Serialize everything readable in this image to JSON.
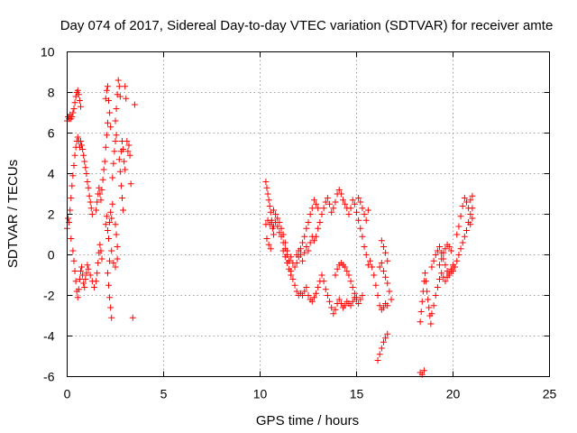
{
  "chart_data": {
    "type": "scatter",
    "title": "Day 074 of 2017, Sidereal Day-to-day VTEC variation (SDTVAR) for receiver amte",
    "xlabel": "GPS time / hours",
    "ylabel": "SDTVAR / TECUs",
    "xlim": [
      0,
      25
    ],
    "ylim": [
      -6,
      10
    ],
    "xticks": [
      "0",
      "5",
      "10",
      "15",
      "20",
      "25"
    ],
    "yticks": [
      "-6",
      "-4",
      "-2",
      "0",
      "2",
      "4",
      "6",
      "8",
      "10"
    ],
    "grid": true,
    "marker": "plus",
    "color": "#ff0000",
    "points": [
      [
        0.0,
        6.6
      ],
      [
        0.05,
        6.8
      ],
      [
        0.1,
        6.7
      ],
      [
        0.15,
        6.9
      ],
      [
        0.2,
        6.7
      ],
      [
        0.25,
        6.8
      ],
      [
        0.3,
        7.0
      ],
      [
        0.35,
        7.2
      ],
      [
        0.4,
        7.5
      ],
      [
        0.45,
        7.8
      ],
      [
        0.5,
        8.0
      ],
      [
        0.55,
        8.1
      ],
      [
        0.6,
        7.9
      ],
      [
        0.65,
        7.6
      ],
      [
        0.7,
        7.3
      ],
      [
        0.0,
        1.3
      ],
      [
        0.05,
        1.8
      ],
      [
        0.1,
        1.6
      ],
      [
        0.15,
        2.2
      ],
      [
        0.2,
        2.8
      ],
      [
        0.25,
        3.4
      ],
      [
        0.3,
        3.9
      ],
      [
        0.35,
        4.4
      ],
      [
        0.4,
        4.9
      ],
      [
        0.45,
        5.3
      ],
      [
        0.5,
        5.6
      ],
      [
        0.55,
        5.8
      ],
      [
        0.6,
        5.6
      ],
      [
        0.65,
        5.3
      ],
      [
        0.7,
        5.6
      ],
      [
        0.75,
        5.4
      ],
      [
        0.8,
        5.2
      ],
      [
        0.85,
        4.9
      ],
      [
        0.9,
        4.6
      ],
      [
        0.95,
        4.3
      ],
      [
        1.0,
        4.0
      ],
      [
        1.05,
        3.6
      ],
      [
        1.1,
        3.3
      ],
      [
        1.15,
        2.9
      ],
      [
        1.2,
        2.6
      ],
      [
        1.25,
        2.3
      ],
      [
        1.3,
        2.0
      ],
      [
        0.2,
        0.8
      ],
      [
        0.3,
        0.2
      ],
      [
        0.35,
        -0.3
      ],
      [
        0.4,
        -0.8
      ],
      [
        0.45,
        -1.3
      ],
      [
        0.5,
        -1.8
      ],
      [
        0.55,
        -2.1
      ],
      [
        0.6,
        -1.7
      ],
      [
        0.65,
        -1.2
      ],
      [
        0.7,
        -0.8
      ],
      [
        0.75,
        -0.6
      ],
      [
        0.8,
        -1.0
      ],
      [
        0.85,
        -1.4
      ],
      [
        0.9,
        -1.6
      ],
      [
        0.95,
        -1.2
      ],
      [
        1.0,
        -0.9
      ],
      [
        1.05,
        -0.5
      ],
      [
        1.1,
        -0.7
      ],
      [
        1.2,
        -1.0
      ],
      [
        1.3,
        -1.3
      ],
      [
        1.4,
        -1.6
      ],
      [
        1.5,
        -1.3
      ],
      [
        1.55,
        -0.9
      ],
      [
        1.6,
        -0.4
      ],
      [
        1.65,
        0.1
      ],
      [
        1.7,
        0.5
      ],
      [
        1.75,
        0.2
      ],
      [
        1.8,
        -0.2
      ],
      [
        1.5,
        2.2
      ],
      [
        1.55,
        2.6
      ],
      [
        1.6,
        3.0
      ],
      [
        1.65,
        3.3
      ],
      [
        1.7,
        3.0
      ],
      [
        1.75,
        2.7
      ],
      [
        1.8,
        3.2
      ],
      [
        1.85,
        3.7
      ],
      [
        1.9,
        4.2
      ],
      [
        1.95,
        4.6
      ],
      [
        2.0,
        5.3
      ],
      [
        2.05,
        5.9
      ],
      [
        2.1,
        6.5
      ],
      [
        2.0,
        7.7
      ],
      [
        2.05,
        8.1
      ],
      [
        2.1,
        8.3
      ],
      [
        2.15,
        7.6
      ],
      [
        2.2,
        7.0
      ],
      [
        2.25,
        6.3
      ],
      [
        2.0,
        1.5
      ],
      [
        2.05,
        1.9
      ],
      [
        2.1,
        1.2
      ],
      [
        2.15,
        0.8
      ],
      [
        2.2,
        1.6
      ],
      [
        2.25,
        2.1
      ],
      [
        2.3,
        1.8
      ],
      [
        2.35,
        2.5
      ],
      [
        2.1,
        -0.9
      ],
      [
        2.15,
        -1.5
      ],
      [
        2.2,
        -2.1
      ],
      [
        2.25,
        -2.6
      ],
      [
        2.3,
        -3.1
      ],
      [
        2.2,
        -0.3
      ],
      [
        2.3,
        0.2
      ],
      [
        2.4,
        -0.4
      ],
      [
        2.35,
        3.8
      ],
      [
        2.4,
        4.5
      ],
      [
        2.45,
        5.1
      ],
      [
        2.5,
        5.6
      ],
      [
        2.55,
        5.9
      ],
      [
        2.5,
        6.6
      ],
      [
        2.55,
        7.2
      ],
      [
        2.6,
        7.9
      ],
      [
        2.65,
        8.6
      ],
      [
        2.7,
        8.3
      ],
      [
        2.75,
        7.8
      ],
      [
        2.7,
        4.7
      ],
      [
        2.75,
        4.1
      ],
      [
        2.8,
        3.4
      ],
      [
        2.85,
        2.8
      ],
      [
        2.9,
        2.2
      ],
      [
        2.8,
        5.1
      ],
      [
        2.85,
        5.6
      ],
      [
        2.9,
        5.2
      ],
      [
        2.95,
        4.6
      ],
      [
        3.0,
        4.2
      ],
      [
        3.0,
        8.3
      ],
      [
        3.05,
        7.7
      ],
      [
        2.5,
        1.5
      ],
      [
        2.55,
        1.0
      ],
      [
        2.6,
        0.4
      ],
      [
        2.5,
        -0.6
      ],
      [
        2.6,
        -0.2
      ],
      [
        3.1,
        5.6
      ],
      [
        3.15,
        5.1
      ],
      [
        3.2,
        5.4
      ],
      [
        3.25,
        4.9
      ],
      [
        3.3,
        3.5
      ],
      [
        3.4,
        -3.1
      ],
      [
        3.5,
        7.4
      ],
      [
        10.3,
        3.6
      ],
      [
        10.35,
        3.3
      ],
      [
        10.4,
        3.0
      ],
      [
        10.45,
        2.7
      ],
      [
        10.5,
        2.4
      ],
      [
        10.55,
        2.1
      ],
      [
        10.6,
        1.7
      ],
      [
        10.65,
        1.3
      ],
      [
        10.7,
        1.0
      ],
      [
        10.3,
        1.5
      ],
      [
        10.4,
        1.7
      ],
      [
        10.5,
        1.5
      ],
      [
        10.6,
        1.6
      ],
      [
        10.7,
        1.4
      ],
      [
        10.8,
        1.6
      ],
      [
        10.9,
        1.4
      ],
      [
        10.35,
        0.8
      ],
      [
        10.45,
        0.5
      ],
      [
        10.55,
        0.3
      ],
      [
        10.7,
        2.2
      ],
      [
        10.8,
        2.0
      ],
      [
        10.9,
        1.8
      ],
      [
        11.0,
        1.6
      ],
      [
        11.1,
        1.3
      ],
      [
        11.2,
        1.0
      ],
      [
        11.3,
        0.6
      ],
      [
        11.4,
        0.2
      ],
      [
        11.5,
        -0.3
      ],
      [
        11.6,
        -0.8
      ],
      [
        11.7,
        -1.2
      ],
      [
        11.8,
        -1.5
      ],
      [
        11.9,
        -1.8
      ],
      [
        12.0,
        -2.0
      ],
      [
        11.0,
        1.1
      ],
      [
        11.1,
        0.9
      ],
      [
        11.2,
        0.6
      ],
      [
        11.3,
        0.3
      ],
      [
        11.4,
        0.0
      ],
      [
        11.5,
        -0.3
      ],
      [
        11.6,
        -0.1
      ],
      [
        11.7,
        -0.4
      ],
      [
        11.8,
        -0.6
      ],
      [
        11.9,
        -0.4
      ],
      [
        12.0,
        -0.1
      ],
      [
        12.1,
        0.3
      ],
      [
        12.2,
        0.6
      ],
      [
        12.3,
        0.9
      ],
      [
        12.4,
        1.3
      ],
      [
        12.5,
        1.6
      ],
      [
        12.6,
        2.0
      ],
      [
        12.7,
        2.3
      ],
      [
        12.8,
        2.7
      ],
      [
        12.9,
        2.5
      ],
      [
        13.0,
        2.3
      ],
      [
        11.2,
        0.2
      ],
      [
        11.3,
        -0.1
      ],
      [
        11.4,
        -0.4
      ],
      [
        11.5,
        -0.7
      ],
      [
        11.6,
        -1.0
      ],
      [
        11.9,
        0.0
      ],
      [
        12.0,
        0.2
      ],
      [
        12.1,
        0.0
      ],
      [
        12.2,
        -0.3
      ],
      [
        12.3,
        0.1
      ],
      [
        12.4,
        0.4
      ],
      [
        12.5,
        0.2
      ],
      [
        12.6,
        0.6
      ],
      [
        12.7,
        0.9
      ],
      [
        12.8,
        0.7
      ],
      [
        12.9,
        0.9
      ],
      [
        13.0,
        1.3
      ],
      [
        13.1,
        1.6
      ],
      [
        13.2,
        2.0
      ],
      [
        13.3,
        2.3
      ],
      [
        13.4,
        2.6
      ],
      [
        13.5,
        2.8
      ],
      [
        13.6,
        2.5
      ],
      [
        13.7,
        2.1
      ],
      [
        13.8,
        2.3
      ],
      [
        13.9,
        2.6
      ],
      [
        14.0,
        3.0
      ],
      [
        14.1,
        3.2
      ],
      [
        14.2,
        3.0
      ],
      [
        14.3,
        2.7
      ],
      [
        14.4,
        2.5
      ],
      [
        14.5,
        2.3
      ],
      [
        14.6,
        2.0
      ],
      [
        14.7,
        2.3
      ],
      [
        14.8,
        2.7
      ],
      [
        14.9,
        2.5
      ],
      [
        15.0,
        2.1
      ],
      [
        15.1,
        2.8
      ],
      [
        15.2,
        2.6
      ],
      [
        15.3,
        2.3
      ],
      [
        15.4,
        2.0
      ],
      [
        15.5,
        1.7
      ],
      [
        15.6,
        2.2
      ],
      [
        12.1,
        -1.9
      ],
      [
        12.2,
        -2.0
      ],
      [
        12.3,
        -1.8
      ],
      [
        12.4,
        -1.6
      ],
      [
        12.5,
        -2.0
      ],
      [
        12.6,
        -2.2
      ],
      [
        12.7,
        -2.3
      ],
      [
        12.8,
        -2.1
      ],
      [
        12.9,
        -1.9
      ],
      [
        13.0,
        -1.6
      ],
      [
        13.1,
        -1.3
      ],
      [
        13.2,
        -1.0
      ],
      [
        13.3,
        -1.3
      ],
      [
        13.4,
        -1.7
      ],
      [
        13.5,
        -2.0
      ],
      [
        13.6,
        -2.3
      ],
      [
        13.7,
        -2.6
      ],
      [
        13.8,
        -2.9
      ],
      [
        13.9,
        -2.7
      ],
      [
        14.0,
        -2.4
      ],
      [
        14.1,
        -2.2
      ],
      [
        14.2,
        -2.4
      ],
      [
        14.3,
        -2.6
      ],
      [
        14.4,
        -2.5
      ],
      [
        14.5,
        -2.3
      ],
      [
        14.6,
        -2.4
      ],
      [
        14.7,
        -2.5
      ],
      [
        14.8,
        -2.3
      ],
      [
        14.9,
        -2.1
      ],
      [
        15.0,
        -2.2
      ],
      [
        15.1,
        -2.4
      ],
      [
        15.2,
        -2.2
      ],
      [
        15.3,
        -2.0
      ],
      [
        13.9,
        -1.0
      ],
      [
        14.0,
        -0.7
      ],
      [
        14.1,
        -0.5
      ],
      [
        14.2,
        -0.4
      ],
      [
        14.3,
        -0.5
      ],
      [
        14.4,
        -0.6
      ],
      [
        14.5,
        -0.8
      ],
      [
        14.6,
        -1.0
      ],
      [
        14.7,
        -1.3
      ],
      [
        14.8,
        -1.6
      ],
      [
        14.9,
        -1.9
      ],
      [
        15.0,
        -2.1
      ],
      [
        15.1,
        1.7
      ],
      [
        15.2,
        1.3
      ],
      [
        15.3,
        0.9
      ],
      [
        15.4,
        0.4
      ],
      [
        15.5,
        0.0
      ],
      [
        15.6,
        -0.5
      ],
      [
        15.7,
        -0.3
      ],
      [
        15.8,
        -0.6
      ],
      [
        15.9,
        -1.0
      ],
      [
        16.0,
        -1.5
      ],
      [
        16.1,
        -2.0
      ],
      [
        16.2,
        -2.5
      ],
      [
        16.3,
        -2.7
      ],
      [
        16.4,
        -2.6
      ],
      [
        16.5,
        -2.4
      ],
      [
        16.6,
        -2.5
      ],
      [
        16.2,
        -0.6
      ],
      [
        16.3,
        -0.4
      ],
      [
        16.4,
        -0.8
      ],
      [
        16.5,
        -1.1
      ],
      [
        16.6,
        -1.4
      ],
      [
        16.7,
        -1.8
      ],
      [
        16.8,
        -2.2
      ],
      [
        16.3,
        0.7
      ],
      [
        16.4,
        0.4
      ],
      [
        16.5,
        0.1
      ],
      [
        16.6,
        -0.3
      ],
      [
        16.1,
        -5.2
      ],
      [
        16.2,
        -4.9
      ],
      [
        16.3,
        -4.6
      ],
      [
        16.4,
        -4.3
      ],
      [
        16.5,
        -4.1
      ],
      [
        16.6,
        -3.9
      ],
      [
        18.3,
        -5.8
      ],
      [
        18.4,
        -5.9
      ],
      [
        18.5,
        -5.7
      ],
      [
        18.3,
        -3.3
      ],
      [
        18.35,
        -2.8
      ],
      [
        18.4,
        -2.3
      ],
      [
        18.45,
        -1.8
      ],
      [
        18.5,
        -1.3
      ],
      [
        18.55,
        -0.9
      ],
      [
        18.6,
        -1.3
      ],
      [
        18.65,
        -1.8
      ],
      [
        18.7,
        -2.2
      ],
      [
        18.75,
        -2.6
      ],
      [
        18.8,
        -3.0
      ],
      [
        18.85,
        -3.4
      ],
      [
        18.9,
        -2.9
      ],
      [
        19.0,
        -2.5
      ],
      [
        19.1,
        -2.0
      ],
      [
        19.2,
        -1.6
      ],
      [
        19.3,
        -1.2
      ],
      [
        19.4,
        -0.9
      ],
      [
        19.5,
        -1.1
      ],
      [
        19.6,
        -1.3
      ],
      [
        19.7,
        -1.1
      ],
      [
        19.8,
        -0.9
      ],
      [
        19.9,
        -0.7
      ],
      [
        20.0,
        -0.8
      ],
      [
        20.1,
        -0.6
      ],
      [
        20.2,
        -0.3
      ],
      [
        20.3,
        0.0
      ],
      [
        20.4,
        0.3
      ],
      [
        20.5,
        0.6
      ],
      [
        20.6,
        0.9
      ],
      [
        20.7,
        1.2
      ],
      [
        20.8,
        1.6
      ],
      [
        20.9,
        2.0
      ],
      [
        18.9,
        -0.6
      ],
      [
        19.0,
        -0.3
      ],
      [
        19.1,
        0.0
      ],
      [
        19.2,
        0.2
      ],
      [
        19.3,
        0.4
      ],
      [
        19.4,
        0.1
      ],
      [
        19.5,
        -0.2
      ],
      [
        19.6,
        -0.5
      ],
      [
        19.7,
        -0.8
      ],
      [
        19.8,
        -1.0
      ],
      [
        19.9,
        -0.8
      ],
      [
        20.0,
        -0.5
      ],
      [
        19.3,
        -0.5
      ],
      [
        19.4,
        -0.2
      ],
      [
        19.5,
        0.1
      ],
      [
        19.6,
        0.3
      ],
      [
        19.7,
        0.5
      ],
      [
        19.8,
        0.4
      ],
      [
        19.9,
        0.2
      ],
      [
        20.2,
        1.0
      ],
      [
        20.3,
        1.4
      ],
      [
        20.4,
        1.9
      ],
      [
        20.5,
        2.4
      ],
      [
        20.6,
        2.8
      ],
      [
        20.7,
        2.6
      ],
      [
        20.8,
        2.3
      ],
      [
        20.9,
        2.7
      ],
      [
        21.0,
        2.9
      ],
      [
        21.0,
        2.3
      ],
      [
        20.9,
        1.5
      ],
      [
        21.0,
        1.8
      ]
    ]
  }
}
